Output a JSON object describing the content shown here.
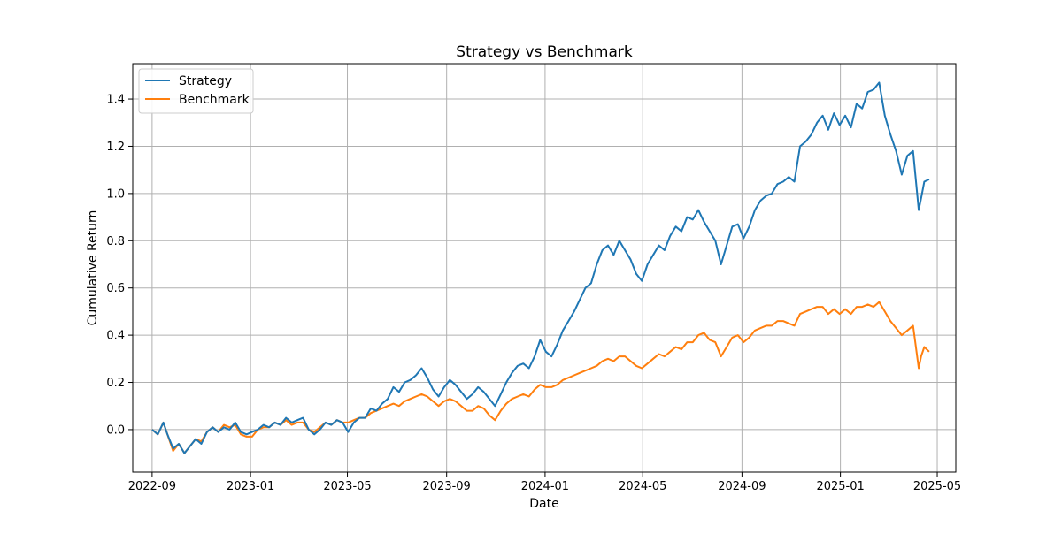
{
  "chart_data": {
    "type": "line",
    "title": "Strategy vs Benchmark",
    "xlabel": "Date",
    "ylabel": "Cumulative Return",
    "x_axis": "date",
    "xlim": [
      "2022-08-08",
      "2025-05-24"
    ],
    "ylim": [
      -0.18,
      1.55
    ],
    "x_ticks": [
      "2022-09",
      "2023-01",
      "2023-05",
      "2023-09",
      "2024-01",
      "2024-05",
      "2024-09",
      "2025-01",
      "2025-05"
    ],
    "y_ticks": [
      "0.0",
      "0.2",
      "0.4",
      "0.6",
      "0.8",
      "1.0",
      "1.2",
      "1.4"
    ],
    "grid": true,
    "legend_position": "top-left",
    "series": [
      {
        "name": "Strategy",
        "color": "#1f77b4",
        "points": [
          [
            "2022-09-01",
            0.0
          ],
          [
            "2022-09-08",
            -0.02
          ],
          [
            "2022-09-15",
            0.03
          ],
          [
            "2022-09-20",
            -0.02
          ],
          [
            "2022-09-27",
            -0.08
          ],
          [
            "2022-10-04",
            -0.06
          ],
          [
            "2022-10-11",
            -0.1
          ],
          [
            "2022-10-18",
            -0.07
          ],
          [
            "2022-10-25",
            -0.04
          ],
          [
            "2022-11-01",
            -0.06
          ],
          [
            "2022-11-08",
            -0.01
          ],
          [
            "2022-11-15",
            0.01
          ],
          [
            "2022-11-22",
            -0.01
          ],
          [
            "2022-11-29",
            0.01
          ],
          [
            "2022-12-06",
            0.0
          ],
          [
            "2022-12-13",
            0.03
          ],
          [
            "2022-12-20",
            -0.01
          ],
          [
            "2022-12-27",
            -0.02
          ],
          [
            "2023-01-03",
            -0.01
          ],
          [
            "2023-01-10",
            0.0
          ],
          [
            "2023-01-17",
            0.02
          ],
          [
            "2023-01-24",
            0.01
          ],
          [
            "2023-01-31",
            0.03
          ],
          [
            "2023-02-07",
            0.02
          ],
          [
            "2023-02-14",
            0.05
          ],
          [
            "2023-02-21",
            0.03
          ],
          [
            "2023-02-28",
            0.04
          ],
          [
            "2023-03-07",
            0.05
          ],
          [
            "2023-03-14",
            0.0
          ],
          [
            "2023-03-21",
            -0.02
          ],
          [
            "2023-03-28",
            0.0
          ],
          [
            "2023-04-04",
            0.03
          ],
          [
            "2023-04-11",
            0.02
          ],
          [
            "2023-04-18",
            0.04
          ],
          [
            "2023-04-25",
            0.03
          ],
          [
            "2023-05-02",
            -0.01
          ],
          [
            "2023-05-09",
            0.03
          ],
          [
            "2023-05-16",
            0.05
          ],
          [
            "2023-05-23",
            0.05
          ],
          [
            "2023-05-30",
            0.09
          ],
          [
            "2023-06-06",
            0.08
          ],
          [
            "2023-06-13",
            0.11
          ],
          [
            "2023-06-20",
            0.13
          ],
          [
            "2023-06-27",
            0.18
          ],
          [
            "2023-07-04",
            0.16
          ],
          [
            "2023-07-11",
            0.2
          ],
          [
            "2023-07-18",
            0.21
          ],
          [
            "2023-07-25",
            0.23
          ],
          [
            "2023-08-01",
            0.26
          ],
          [
            "2023-08-08",
            0.22
          ],
          [
            "2023-08-15",
            0.17
          ],
          [
            "2023-08-22",
            0.14
          ],
          [
            "2023-08-29",
            0.18
          ],
          [
            "2023-09-05",
            0.21
          ],
          [
            "2023-09-12",
            0.19
          ],
          [
            "2023-09-19",
            0.16
          ],
          [
            "2023-09-26",
            0.13
          ],
          [
            "2023-10-03",
            0.15
          ],
          [
            "2023-10-10",
            0.18
          ],
          [
            "2023-10-17",
            0.16
          ],
          [
            "2023-10-24",
            0.13
          ],
          [
            "2023-10-31",
            0.1
          ],
          [
            "2023-11-07",
            0.15
          ],
          [
            "2023-11-14",
            0.2
          ],
          [
            "2023-11-21",
            0.24
          ],
          [
            "2023-11-28",
            0.27
          ],
          [
            "2023-12-05",
            0.28
          ],
          [
            "2023-12-12",
            0.26
          ],
          [
            "2023-12-19",
            0.31
          ],
          [
            "2023-12-26",
            0.38
          ],
          [
            "2024-01-02",
            0.33
          ],
          [
            "2024-01-09",
            0.31
          ],
          [
            "2024-01-16",
            0.36
          ],
          [
            "2024-01-23",
            0.42
          ],
          [
            "2024-01-30",
            0.46
          ],
          [
            "2024-02-06",
            0.5
          ],
          [
            "2024-02-13",
            0.55
          ],
          [
            "2024-02-20",
            0.6
          ],
          [
            "2024-02-27",
            0.62
          ],
          [
            "2024-03-05",
            0.7
          ],
          [
            "2024-03-12",
            0.76
          ],
          [
            "2024-03-19",
            0.78
          ],
          [
            "2024-03-26",
            0.74
          ],
          [
            "2024-04-02",
            0.8
          ],
          [
            "2024-04-09",
            0.76
          ],
          [
            "2024-04-16",
            0.72
          ],
          [
            "2024-04-23",
            0.66
          ],
          [
            "2024-04-30",
            0.63
          ],
          [
            "2024-05-07",
            0.7
          ],
          [
            "2024-05-14",
            0.74
          ],
          [
            "2024-05-21",
            0.78
          ],
          [
            "2024-05-28",
            0.76
          ],
          [
            "2024-06-04",
            0.82
          ],
          [
            "2024-06-11",
            0.86
          ],
          [
            "2024-06-18",
            0.84
          ],
          [
            "2024-06-25",
            0.9
          ],
          [
            "2024-07-02",
            0.89
          ],
          [
            "2024-07-09",
            0.93
          ],
          [
            "2024-07-16",
            0.88
          ],
          [
            "2024-07-23",
            0.84
          ],
          [
            "2024-07-30",
            0.8
          ],
          [
            "2024-08-06",
            0.7
          ],
          [
            "2024-08-13",
            0.78
          ],
          [
            "2024-08-20",
            0.86
          ],
          [
            "2024-08-27",
            0.87
          ],
          [
            "2024-09-03",
            0.81
          ],
          [
            "2024-09-10",
            0.86
          ],
          [
            "2024-09-17",
            0.93
          ],
          [
            "2024-09-24",
            0.97
          ],
          [
            "2024-10-01",
            0.99
          ],
          [
            "2024-10-08",
            1.0
          ],
          [
            "2024-10-15",
            1.04
          ],
          [
            "2024-10-22",
            1.05
          ],
          [
            "2024-10-29",
            1.07
          ],
          [
            "2024-11-05",
            1.05
          ],
          [
            "2024-11-12",
            1.2
          ],
          [
            "2024-11-19",
            1.22
          ],
          [
            "2024-11-26",
            1.25
          ],
          [
            "2024-12-03",
            1.3
          ],
          [
            "2024-12-10",
            1.33
          ],
          [
            "2024-12-17",
            1.27
          ],
          [
            "2024-12-24",
            1.34
          ],
          [
            "2024-12-31",
            1.29
          ],
          [
            "2025-01-07",
            1.33
          ],
          [
            "2025-01-14",
            1.28
          ],
          [
            "2025-01-21",
            1.38
          ],
          [
            "2025-01-28",
            1.36
          ],
          [
            "2025-02-04",
            1.43
          ],
          [
            "2025-02-11",
            1.44
          ],
          [
            "2025-02-18",
            1.47
          ],
          [
            "2025-02-25",
            1.33
          ],
          [
            "2025-03-04",
            1.25
          ],
          [
            "2025-03-11",
            1.18
          ],
          [
            "2025-03-18",
            1.08
          ],
          [
            "2025-03-25",
            1.16
          ],
          [
            "2025-04-01",
            1.18
          ],
          [
            "2025-04-08",
            0.93
          ],
          [
            "2025-04-11",
            0.98
          ],
          [
            "2025-04-15",
            1.05
          ],
          [
            "2025-04-21",
            1.06
          ]
        ]
      },
      {
        "name": "Benchmark",
        "color": "#ff7f0e",
        "points": [
          [
            "2022-09-01",
            0.0
          ],
          [
            "2022-09-08",
            -0.02
          ],
          [
            "2022-09-15",
            0.03
          ],
          [
            "2022-09-20",
            -0.02
          ],
          [
            "2022-09-27",
            -0.09
          ],
          [
            "2022-10-04",
            -0.06
          ],
          [
            "2022-10-11",
            -0.1
          ],
          [
            "2022-10-18",
            -0.07
          ],
          [
            "2022-10-25",
            -0.04
          ],
          [
            "2022-11-01",
            -0.05
          ],
          [
            "2022-11-08",
            -0.01
          ],
          [
            "2022-11-15",
            0.01
          ],
          [
            "2022-11-22",
            -0.01
          ],
          [
            "2022-11-29",
            0.02
          ],
          [
            "2022-12-06",
            0.01
          ],
          [
            "2022-12-13",
            0.02
          ],
          [
            "2022-12-20",
            -0.02
          ],
          [
            "2022-12-27",
            -0.03
          ],
          [
            "2023-01-03",
            -0.03
          ],
          [
            "2023-01-10",
            0.0
          ],
          [
            "2023-01-17",
            0.01
          ],
          [
            "2023-01-24",
            0.01
          ],
          [
            "2023-01-31",
            0.03
          ],
          [
            "2023-02-07",
            0.02
          ],
          [
            "2023-02-14",
            0.04
          ],
          [
            "2023-02-21",
            0.02
          ],
          [
            "2023-02-28",
            0.03
          ],
          [
            "2023-03-07",
            0.03
          ],
          [
            "2023-03-14",
            0.0
          ],
          [
            "2023-03-21",
            -0.01
          ],
          [
            "2023-03-28",
            0.01
          ],
          [
            "2023-04-04",
            0.03
          ],
          [
            "2023-04-11",
            0.02
          ],
          [
            "2023-04-18",
            0.04
          ],
          [
            "2023-04-25",
            0.03
          ],
          [
            "2023-05-02",
            0.03
          ],
          [
            "2023-05-09",
            0.04
          ],
          [
            "2023-05-16",
            0.05
          ],
          [
            "2023-05-23",
            0.05
          ],
          [
            "2023-05-30",
            0.07
          ],
          [
            "2023-06-06",
            0.08
          ],
          [
            "2023-06-13",
            0.09
          ],
          [
            "2023-06-20",
            0.1
          ],
          [
            "2023-06-27",
            0.11
          ],
          [
            "2023-07-04",
            0.1
          ],
          [
            "2023-07-11",
            0.12
          ],
          [
            "2023-07-18",
            0.13
          ],
          [
            "2023-07-25",
            0.14
          ],
          [
            "2023-08-01",
            0.15
          ],
          [
            "2023-08-08",
            0.14
          ],
          [
            "2023-08-15",
            0.12
          ],
          [
            "2023-08-22",
            0.1
          ],
          [
            "2023-08-29",
            0.12
          ],
          [
            "2023-09-05",
            0.13
          ],
          [
            "2023-09-12",
            0.12
          ],
          [
            "2023-09-19",
            0.1
          ],
          [
            "2023-09-26",
            0.08
          ],
          [
            "2023-10-03",
            0.08
          ],
          [
            "2023-10-10",
            0.1
          ],
          [
            "2023-10-17",
            0.09
          ],
          [
            "2023-10-24",
            0.06
          ],
          [
            "2023-10-31",
            0.04
          ],
          [
            "2023-11-07",
            0.08
          ],
          [
            "2023-11-14",
            0.11
          ],
          [
            "2023-11-21",
            0.13
          ],
          [
            "2023-11-28",
            0.14
          ],
          [
            "2023-12-05",
            0.15
          ],
          [
            "2023-12-12",
            0.14
          ],
          [
            "2023-12-19",
            0.17
          ],
          [
            "2023-12-26",
            0.19
          ],
          [
            "2024-01-02",
            0.18
          ],
          [
            "2024-01-09",
            0.18
          ],
          [
            "2024-01-16",
            0.19
          ],
          [
            "2024-01-23",
            0.21
          ],
          [
            "2024-01-30",
            0.22
          ],
          [
            "2024-02-06",
            0.23
          ],
          [
            "2024-02-13",
            0.24
          ],
          [
            "2024-02-20",
            0.25
          ],
          [
            "2024-02-27",
            0.26
          ],
          [
            "2024-03-05",
            0.27
          ],
          [
            "2024-03-12",
            0.29
          ],
          [
            "2024-03-19",
            0.3
          ],
          [
            "2024-03-26",
            0.29
          ],
          [
            "2024-04-02",
            0.31
          ],
          [
            "2024-04-09",
            0.31
          ],
          [
            "2024-04-16",
            0.29
          ],
          [
            "2024-04-23",
            0.27
          ],
          [
            "2024-04-30",
            0.26
          ],
          [
            "2024-05-07",
            0.28
          ],
          [
            "2024-05-14",
            0.3
          ],
          [
            "2024-05-21",
            0.32
          ],
          [
            "2024-05-28",
            0.31
          ],
          [
            "2024-06-04",
            0.33
          ],
          [
            "2024-06-11",
            0.35
          ],
          [
            "2024-06-18",
            0.34
          ],
          [
            "2024-06-25",
            0.37
          ],
          [
            "2024-07-02",
            0.37
          ],
          [
            "2024-07-09",
            0.4
          ],
          [
            "2024-07-16",
            0.41
          ],
          [
            "2024-07-23",
            0.38
          ],
          [
            "2024-07-30",
            0.37
          ],
          [
            "2024-08-06",
            0.31
          ],
          [
            "2024-08-13",
            0.35
          ],
          [
            "2024-08-20",
            0.39
          ],
          [
            "2024-08-27",
            0.4
          ],
          [
            "2024-09-03",
            0.37
          ],
          [
            "2024-09-10",
            0.39
          ],
          [
            "2024-09-17",
            0.42
          ],
          [
            "2024-09-24",
            0.43
          ],
          [
            "2024-10-01",
            0.44
          ],
          [
            "2024-10-08",
            0.44
          ],
          [
            "2024-10-15",
            0.46
          ],
          [
            "2024-10-22",
            0.46
          ],
          [
            "2024-10-29",
            0.45
          ],
          [
            "2024-11-05",
            0.44
          ],
          [
            "2024-11-12",
            0.49
          ],
          [
            "2024-11-19",
            0.5
          ],
          [
            "2024-11-26",
            0.51
          ],
          [
            "2024-12-03",
            0.52
          ],
          [
            "2024-12-10",
            0.52
          ],
          [
            "2024-12-17",
            0.49
          ],
          [
            "2024-12-24",
            0.51
          ],
          [
            "2024-12-31",
            0.49
          ],
          [
            "2025-01-07",
            0.51
          ],
          [
            "2025-01-14",
            0.49
          ],
          [
            "2025-01-21",
            0.52
          ],
          [
            "2025-01-28",
            0.52
          ],
          [
            "2025-02-04",
            0.53
          ],
          [
            "2025-02-11",
            0.52
          ],
          [
            "2025-02-18",
            0.54
          ],
          [
            "2025-02-25",
            0.5
          ],
          [
            "2025-03-04",
            0.46
          ],
          [
            "2025-03-11",
            0.43
          ],
          [
            "2025-03-18",
            0.4
          ],
          [
            "2025-03-25",
            0.42
          ],
          [
            "2025-04-01",
            0.44
          ],
          [
            "2025-04-08",
            0.26
          ],
          [
            "2025-04-11",
            0.31
          ],
          [
            "2025-04-15",
            0.35
          ],
          [
            "2025-04-21",
            0.33
          ]
        ]
      }
    ]
  }
}
